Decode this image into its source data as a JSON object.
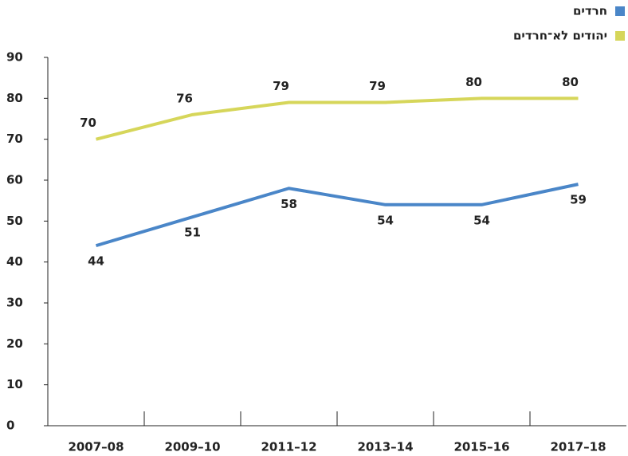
{
  "chart_data": {
    "type": "line",
    "categories": [
      "2007–08",
      "2009–10",
      "2011–12",
      "2013–14",
      "2015–16",
      "2017–18"
    ],
    "series": [
      {
        "name": "חרדים",
        "color": "#4a86c8",
        "values": [
          44,
          51,
          58,
          54,
          54,
          59
        ]
      },
      {
        "name": "יהודים לא־חרדים",
        "color": "#d6d65a",
        "values": [
          70,
          76,
          79,
          79,
          80,
          80
        ]
      }
    ],
    "ylim": [
      0,
      90
    ],
    "yticks": [
      0,
      10,
      20,
      30,
      40,
      50,
      60,
      70,
      80,
      90
    ],
    "grid": false,
    "legend": "top-right"
  }
}
